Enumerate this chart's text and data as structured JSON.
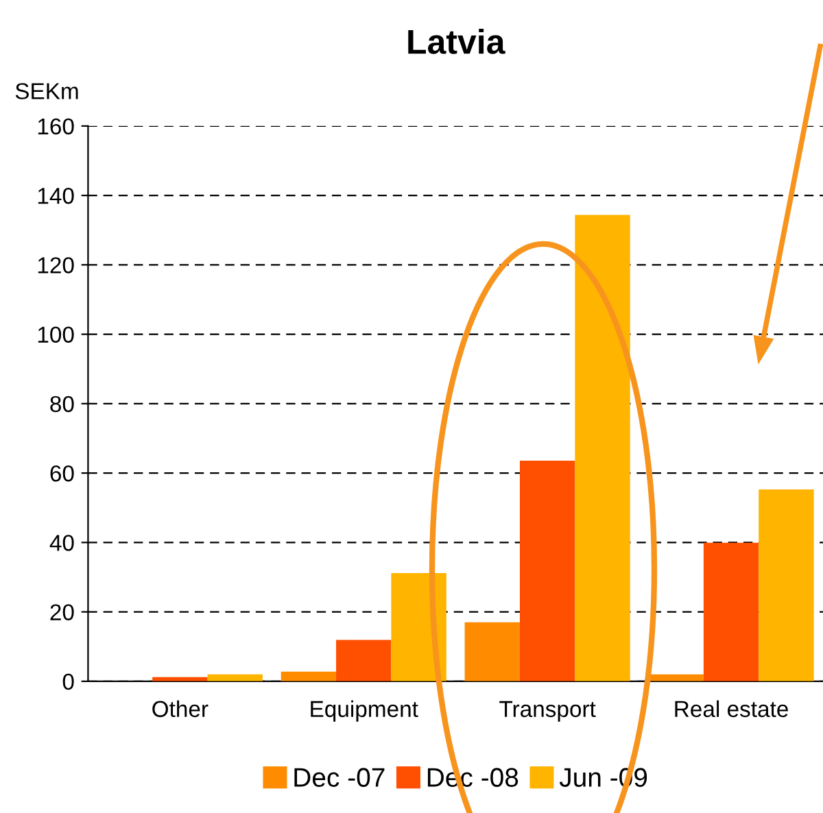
{
  "chart_data": {
    "type": "bar",
    "title": "Latvia",
    "ylabel": "SEKm",
    "categories": [
      "Other",
      "Equipment",
      "Transport",
      "Real estate"
    ],
    "series": [
      {
        "name": "Dec -07",
        "color": "#ff8c00",
        "values": [
          0,
          2.8,
          17,
          2
        ]
      },
      {
        "name": "Dec -08",
        "color": "#ff4f00",
        "values": [
          1.2,
          11.9,
          63.6,
          39.9
        ]
      },
      {
        "name": "Jun -09",
        "color": "#ffb400",
        "values": [
          2,
          31.2,
          134.4,
          55.3
        ]
      }
    ],
    "ylim": [
      0,
      160
    ],
    "yticks": [
      0,
      20,
      40,
      60,
      80,
      100,
      120,
      140,
      160
    ],
    "grid": "y",
    "legend": "bottom"
  }
}
